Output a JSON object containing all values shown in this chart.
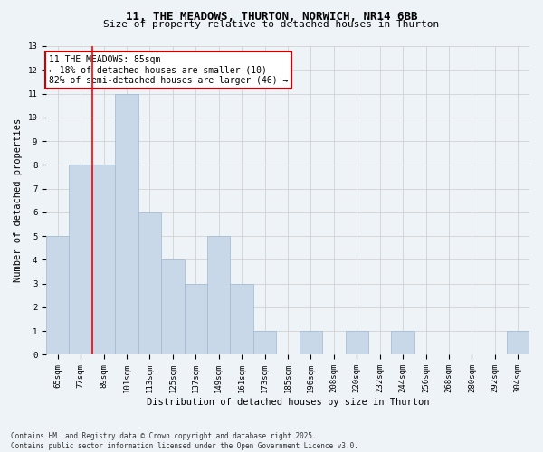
{
  "title1": "11, THE MEADOWS, THURTON, NORWICH, NR14 6BB",
  "title2": "Size of property relative to detached houses in Thurton",
  "xlabel": "Distribution of detached houses by size in Thurton",
  "ylabel": "Number of detached properties",
  "categories": [
    "65sqm",
    "77sqm",
    "89sqm",
    "101sqm",
    "113sqm",
    "125sqm",
    "137sqm",
    "149sqm",
    "161sqm",
    "173sqm",
    "185sqm",
    "196sqm",
    "208sqm",
    "220sqm",
    "232sqm",
    "244sqm",
    "256sqm",
    "268sqm",
    "280sqm",
    "292sqm",
    "304sqm"
  ],
  "values": [
    5,
    8,
    8,
    11,
    6,
    4,
    3,
    5,
    3,
    1,
    0,
    1,
    0,
    1,
    0,
    1,
    0,
    0,
    0,
    0,
    1
  ],
  "bar_color": "#c8d8e8",
  "bar_edgecolor": "#a0b8d0",
  "vline_x": 1.5,
  "annotation_box_text": "11 THE MEADOWS: 85sqm\n← 18% of detached houses are smaller (10)\n82% of semi-detached houses are larger (46) →",
  "annotation_box_color": "#ffffff",
  "annotation_box_edgecolor": "#cc0000",
  "ylim": [
    0,
    13
  ],
  "yticks": [
    0,
    1,
    2,
    3,
    4,
    5,
    6,
    7,
    8,
    9,
    10,
    11,
    12,
    13
  ],
  "grid_color": "#cccccc",
  "background_color": "#eef3f8",
  "footer_text": "Contains HM Land Registry data © Crown copyright and database right 2025.\nContains public sector information licensed under the Open Government Licence v3.0.",
  "title1_fontsize": 9,
  "title2_fontsize": 8,
  "xlabel_fontsize": 7.5,
  "ylabel_fontsize": 7.5,
  "tick_fontsize": 6.5,
  "annotation_fontsize": 7,
  "footer_fontsize": 5.5
}
